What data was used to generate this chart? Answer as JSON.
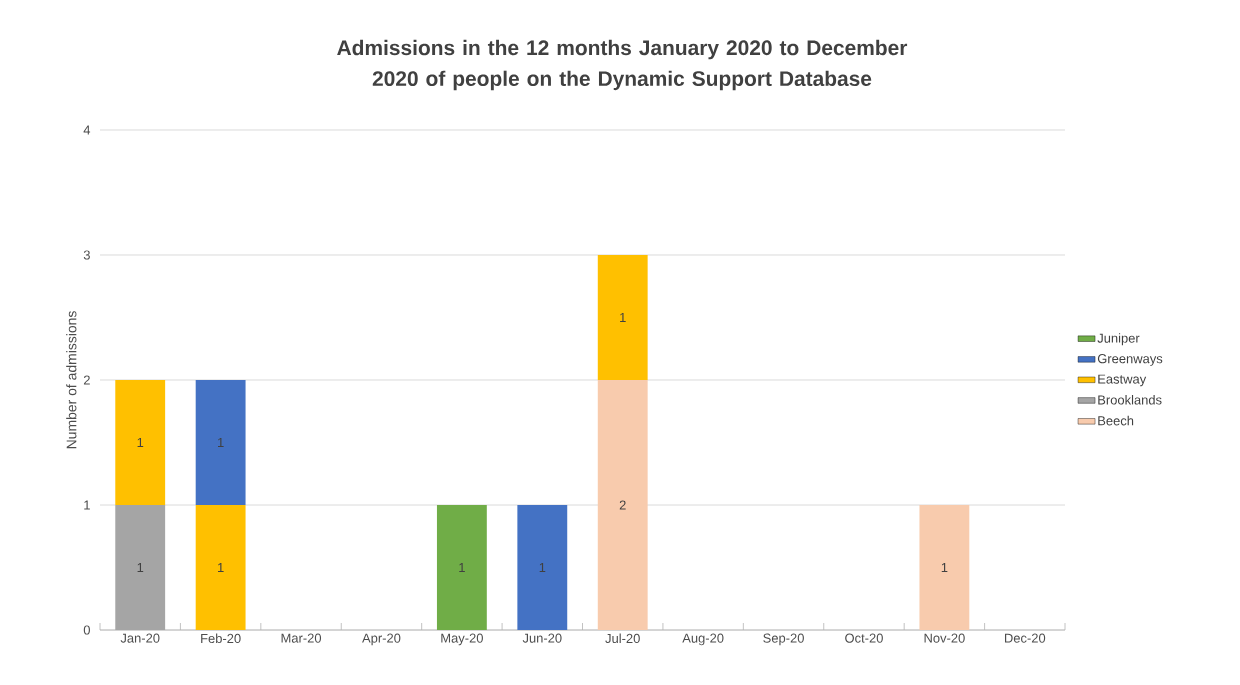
{
  "chart_data": {
    "type": "bar",
    "stacked": true,
    "title": "Admissions in the 12 months January 2020 to December 2020 of people on the Dynamic Support Database",
    "ylabel": "Number of admissions",
    "categories": [
      "Jan-20",
      "Feb-20",
      "Mar-20",
      "Apr-20",
      "May-20",
      "Jun-20",
      "Jul-20",
      "Aug-20",
      "Sep-20",
      "Oct-20",
      "Nov-20",
      "Dec-20"
    ],
    "series": [
      {
        "name": "Beech",
        "color": "#f8cbad",
        "values": [
          null,
          null,
          null,
          null,
          null,
          null,
          2,
          null,
          null,
          null,
          1,
          null
        ],
        "value_labels": [
          null,
          null,
          null,
          null,
          null,
          null,
          "2",
          null,
          null,
          null,
          "1",
          null
        ]
      },
      {
        "name": "Brooklands",
        "color": "#a5a5a5",
        "values": [
          1,
          null,
          null,
          null,
          null,
          null,
          null,
          null,
          null,
          null,
          null,
          null
        ],
        "value_labels": [
          "1",
          null,
          null,
          null,
          null,
          null,
          null,
          null,
          null,
          null,
          null,
          null
        ]
      },
      {
        "name": "Eastway",
        "color": "#ffc000",
        "values": [
          1,
          1,
          null,
          null,
          null,
          null,
          1,
          null,
          null,
          null,
          null,
          null
        ],
        "value_labels": [
          "1",
          "1",
          null,
          null,
          null,
          null,
          "1",
          null,
          null,
          null,
          null,
          null
        ]
      },
      {
        "name": "Greenways",
        "color": "#4472c4",
        "values": [
          null,
          1,
          null,
          null,
          null,
          1,
          null,
          null,
          null,
          null,
          null,
          null
        ],
        "value_labels": [
          null,
          "1",
          null,
          null,
          null,
          "1",
          null,
          null,
          null,
          null,
          null,
          null
        ]
      },
      {
        "name": "Juniper",
        "color": "#70ad47",
        "values": [
          null,
          null,
          null,
          null,
          1,
          null,
          null,
          null,
          null,
          null,
          null,
          null
        ],
        "value_labels": [
          null,
          null,
          null,
          null,
          "1",
          null,
          null,
          null,
          null,
          null,
          null,
          null
        ]
      }
    ],
    "ylim": [
      0,
      4
    ],
    "yticks": [
      0,
      1,
      2,
      3,
      4
    ],
    "grid": "y",
    "legend": "right"
  }
}
